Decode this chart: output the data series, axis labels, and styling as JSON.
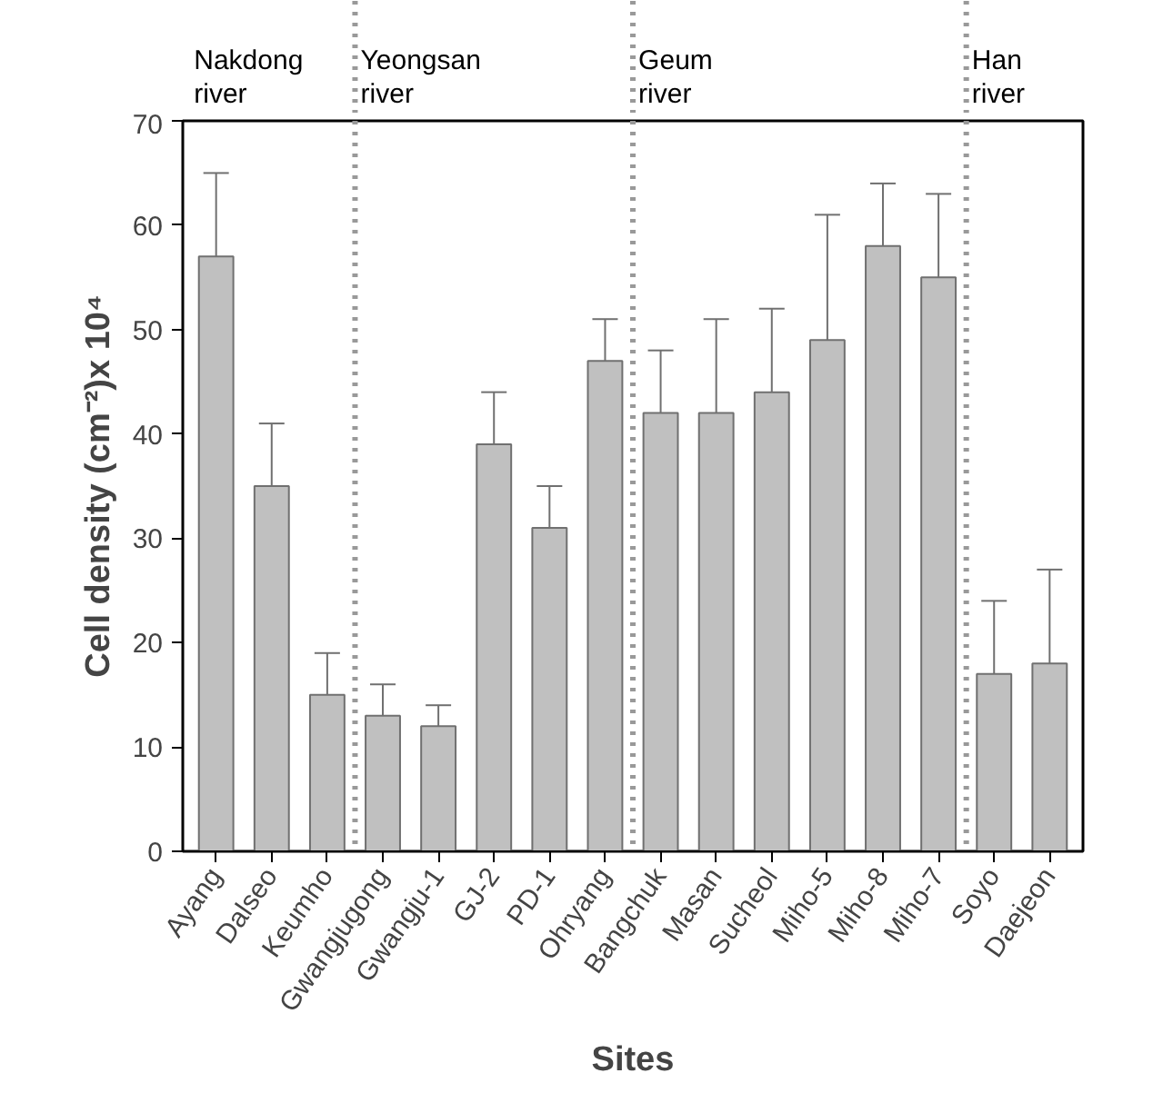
{
  "chart_data": {
    "type": "bar",
    "xlabel": "Sites",
    "ylabel": "Cell density (cm⁻²)x 10⁴",
    "categories": [
      "Ayang",
      "Dalseo",
      "Keumho",
      "Gwangjugong",
      "Gwangju-1",
      "GJ-2",
      "PD-1",
      "Ohryang",
      "Bangchuk",
      "Masan",
      "Sucheol",
      "Miho-5",
      "Miho-8",
      "Miho-7",
      "Soyo",
      "Daejeon"
    ],
    "values": [
      57,
      35,
      15,
      13,
      12,
      39,
      31,
      47,
      42,
      42,
      44,
      49,
      58,
      55,
      17,
      18
    ],
    "errors": [
      [
        57,
        65
      ],
      [
        35,
        41
      ],
      [
        15,
        19
      ],
      [
        13,
        16
      ],
      [
        12,
        14
      ],
      [
        39,
        44
      ],
      [
        31,
        35
      ],
      [
        47,
        51
      ],
      [
        42,
        48
      ],
      [
        42,
        51
      ],
      [
        44,
        52
      ],
      [
        49,
        61
      ],
      [
        58,
        64
      ],
      [
        55,
        63
      ],
      [
        17,
        24
      ],
      [
        18,
        27
      ]
    ],
    "color": "#c0c0c0",
    "ylim": [
      0,
      70
    ],
    "yticks": [
      0,
      10,
      20,
      30,
      40,
      50,
      60,
      70
    ],
    "grid": false,
    "annotations": [
      "Nakdong river",
      "Yeongsan river",
      "Geum river",
      "Han river"
    ]
  }
}
